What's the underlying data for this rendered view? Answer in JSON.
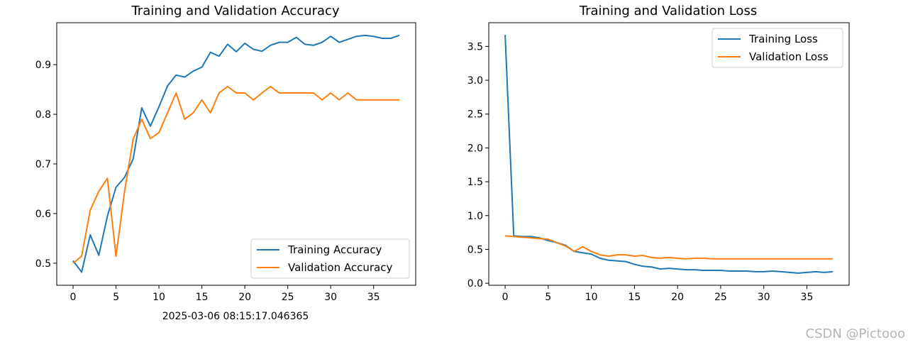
{
  "chart_data": [
    {
      "type": "line",
      "title": "Training and Validation Accuracy",
      "xlabel": "",
      "ylabel": "",
      "xlim": [
        -1.9,
        39.9
      ],
      "ylim": [
        0.4555,
        0.9845
      ],
      "xticks": [
        0,
        5,
        10,
        15,
        20,
        25,
        30,
        35
      ],
      "yticks": [
        0.5,
        0.6,
        0.7,
        0.8,
        0.9
      ],
      "ytick_labels": [
        "0.5",
        "0.6",
        "0.7",
        "0.8",
        "0.9"
      ],
      "legend_position": "lower-right",
      "x": [
        0,
        1,
        2,
        3,
        4,
        5,
        6,
        7,
        8,
        9,
        10,
        11,
        12,
        13,
        14,
        15,
        16,
        17,
        18,
        19,
        20,
        21,
        22,
        23,
        24,
        25,
        26,
        27,
        28,
        29,
        30,
        31,
        32,
        33,
        34,
        35,
        36,
        37,
        38
      ],
      "series": [
        {
          "name": "Training Accuracy",
          "color": "#1f77b4",
          "values": [
            0.505,
            0.482,
            0.557,
            0.516,
            0.595,
            0.653,
            0.673,
            0.71,
            0.813,
            0.776,
            0.815,
            0.857,
            0.879,
            0.875,
            0.887,
            0.895,
            0.925,
            0.917,
            0.941,
            0.926,
            0.943,
            0.931,
            0.927,
            0.939,
            0.945,
            0.945,
            0.955,
            0.941,
            0.939,
            0.945,
            0.957,
            0.945,
            0.951,
            0.957,
            0.959,
            0.957,
            0.953,
            0.953,
            0.959
          ]
        },
        {
          "name": "Validation Accuracy",
          "color": "#ff7f0e",
          "values": [
            0.5,
            0.514,
            0.607,
            0.645,
            0.671,
            0.514,
            0.645,
            0.75,
            0.79,
            0.751,
            0.763,
            0.803,
            0.843,
            0.79,
            0.803,
            0.829,
            0.803,
            0.843,
            0.856,
            0.843,
            0.843,
            0.829,
            0.843,
            0.856,
            0.843,
            0.843,
            0.843,
            0.843,
            0.843,
            0.829,
            0.843,
            0.829,
            0.843,
            0.829,
            0.829,
            0.829,
            0.829,
            0.829,
            0.829
          ]
        }
      ]
    },
    {
      "type": "line",
      "title": "Training and Validation Loss",
      "xlabel": "",
      "ylabel": "",
      "xlim": [
        -1.9,
        39.9
      ],
      "ylim": [
        -0.03,
        3.85
      ],
      "xticks": [
        0,
        5,
        10,
        15,
        20,
        25,
        30,
        35
      ],
      "yticks": [
        0.0,
        0.5,
        1.0,
        1.5,
        2.0,
        2.5,
        3.0,
        3.5
      ],
      "ytick_labels": [
        "0.0",
        "0.5",
        "1.0",
        "1.5",
        "2.0",
        "2.5",
        "3.0",
        "3.5"
      ],
      "legend_position": "upper-right",
      "x": [
        0,
        1,
        2,
        3,
        4,
        5,
        6,
        7,
        8,
        9,
        10,
        11,
        12,
        13,
        14,
        15,
        16,
        17,
        18,
        19,
        20,
        21,
        22,
        23,
        24,
        25,
        26,
        27,
        28,
        29,
        30,
        31,
        32,
        33,
        34,
        35,
        36,
        37,
        38
      ],
      "series": [
        {
          "name": "Training Loss",
          "color": "#1f77b4",
          "values": [
            3.67,
            0.7,
            0.69,
            0.69,
            0.67,
            0.63,
            0.6,
            0.56,
            0.47,
            0.45,
            0.43,
            0.37,
            0.34,
            0.33,
            0.32,
            0.28,
            0.25,
            0.24,
            0.21,
            0.22,
            0.21,
            0.2,
            0.2,
            0.19,
            0.19,
            0.19,
            0.18,
            0.18,
            0.18,
            0.17,
            0.17,
            0.18,
            0.17,
            0.16,
            0.15,
            0.16,
            0.17,
            0.16,
            0.17
          ]
        },
        {
          "name": "Validation Loss",
          "color": "#ff7f0e",
          "values": [
            0.7,
            0.69,
            0.68,
            0.67,
            0.66,
            0.65,
            0.6,
            0.55,
            0.47,
            0.54,
            0.47,
            0.42,
            0.4,
            0.42,
            0.42,
            0.4,
            0.41,
            0.38,
            0.37,
            0.38,
            0.37,
            0.36,
            0.37,
            0.37,
            0.36,
            0.36,
            0.36,
            0.36,
            0.36,
            0.36,
            0.36,
            0.36,
            0.36,
            0.36,
            0.36,
            0.36,
            0.36,
            0.36,
            0.36
          ]
        }
      ]
    }
  ],
  "footer": {
    "timestamp": "2025-03-06 08:15:17.046365",
    "watermark": "CSDN @Pictooo"
  }
}
